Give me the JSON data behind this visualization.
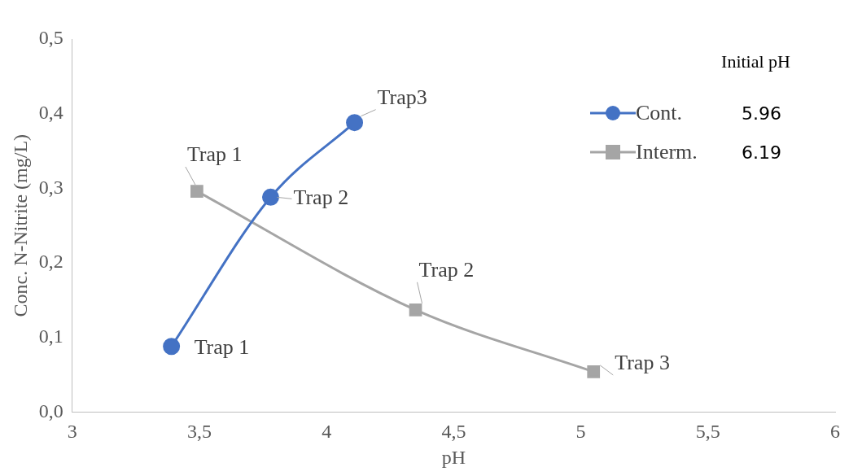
{
  "chart_data": {
    "type": "line",
    "xlabel": "pH",
    "ylabel": "Conc. N-Nitrite (mg/L)",
    "legend_title": "Initial pH",
    "series": [
      {
        "name": "Cont.",
        "color": "#4472c4",
        "marker": "circle",
        "x": [
          3.39,
          3.78,
          4.11
        ],
        "values": [
          0.088,
          0.288,
          0.388
        ]
      },
      {
        "name": "Interm.",
        "color": "#a5a5a5",
        "marker": "square",
        "x": [
          3.49,
          4.35,
          5.05
        ],
        "values": [
          0.296,
          0.137,
          0.054
        ]
      }
    ],
    "xlim": [
      3,
      6
    ],
    "xticks": [
      {
        "value": 3,
        "label": "3"
      },
      {
        "value": 3.5,
        "label": "3,5"
      },
      {
        "value": 4,
        "label": "4"
      },
      {
        "value": 4.5,
        "label": "4,5"
      },
      {
        "value": 5,
        "label": "5"
      },
      {
        "value": 5.5,
        "label": "5,5"
      },
      {
        "value": 6,
        "label": "6"
      }
    ],
    "ylim": [
      0,
      0.5
    ],
    "yticks": [
      {
        "value": 0,
        "label": "0,0"
      },
      {
        "value": 0.1,
        "label": "0,1"
      },
      {
        "value": 0.2,
        "label": "0,2"
      },
      {
        "value": 0.3,
        "label": "0,3"
      },
      {
        "value": 0.4,
        "label": "0,4"
      },
      {
        "value": 0.5,
        "label": "0,5"
      }
    ],
    "grid": false,
    "legend": "top right",
    "line_style": "solid",
    "annotations": [
      {
        "text": "Trap 1",
        "x": 3.39,
        "y": 0.088
      },
      {
        "text": "Trap 2",
        "x": 3.78,
        "y": 0.288
      },
      {
        "text": "Trap3",
        "x": 4.11,
        "y": 0.388
      },
      {
        "text": "Trap 1",
        "x": 3.49,
        "y": 0.296
      },
      {
        "text": "Trap 2",
        "x": 4.35,
        "y": 0.137
      },
      {
        "text": "Trap 3",
        "x": 5.05,
        "y": 0.054
      },
      "5.96",
      "6.19"
    ]
  }
}
